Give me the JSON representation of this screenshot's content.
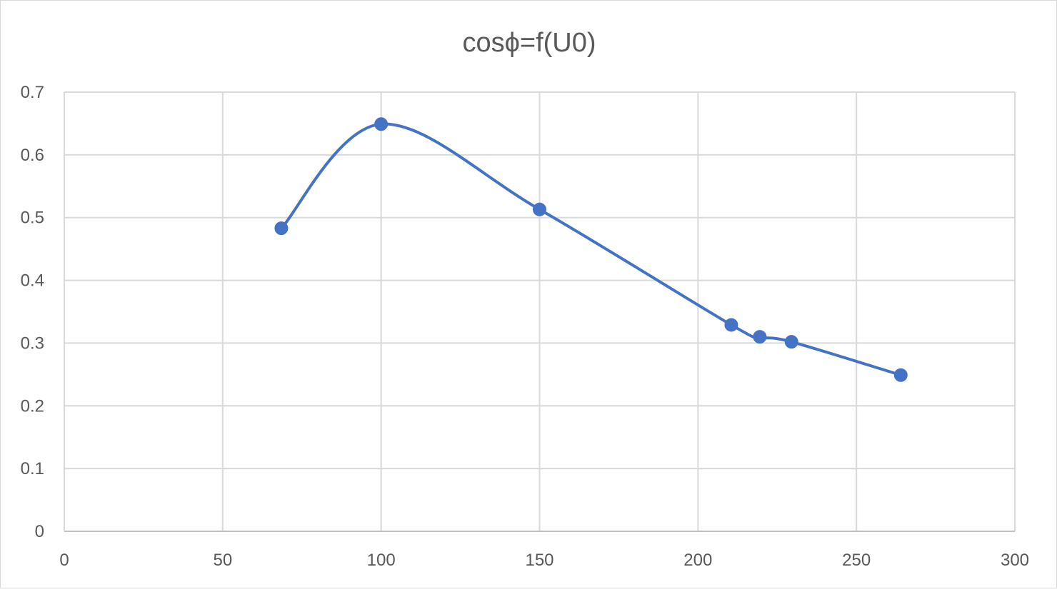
{
  "chart_data": {
    "type": "scatter",
    "title": "cosϕ=f(U0)",
    "xlabel": "",
    "ylabel": "",
    "xlim": [
      0,
      300
    ],
    "ylim": [
      0,
      0.7
    ],
    "x_ticks": [
      0,
      50,
      100,
      150,
      200,
      250,
      300
    ],
    "y_ticks": [
      0,
      0.1,
      0.2,
      0.3,
      0.4,
      0.5,
      0.6,
      0.7
    ],
    "x_tick_labels": [
      "0",
      "50",
      "100",
      "150",
      "200",
      "250",
      "300"
    ],
    "y_tick_labels": [
      "0",
      "0.1",
      "0.2",
      "0.3",
      "0.4",
      "0.5",
      "0.6",
      "0.7"
    ],
    "grid": true,
    "legend": "none",
    "smoothed_line": true,
    "series": [
      {
        "color": "#4472C4",
        "points": [
          {
            "x": 68.5,
            "y": 0.483
          },
          {
            "x": 100,
            "y": 0.649
          },
          {
            "x": 150,
            "y": 0.513
          },
          {
            "x": 210.5,
            "y": 0.329
          },
          {
            "x": 219.5,
            "y": 0.31
          },
          {
            "x": 229.5,
            "y": 0.302
          },
          {
            "x": 264,
            "y": 0.249
          }
        ]
      }
    ]
  }
}
